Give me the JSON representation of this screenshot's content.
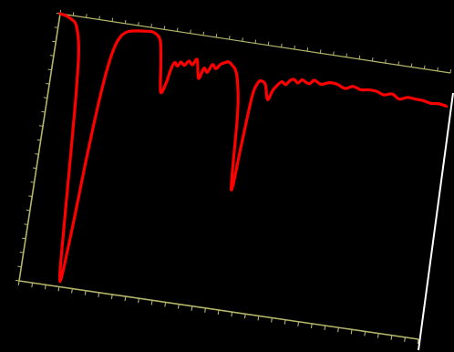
{
  "chart_data": {
    "type": "line",
    "title": "",
    "xlabel": "",
    "ylabel": "",
    "xlim": [
      0,
      100
    ],
    "ylim": [
      0,
      100
    ],
    "grid": false,
    "legend": "none",
    "x_ticks": [
      0,
      3.33,
      6.67,
      10,
      13.33,
      16.67,
      20,
      23.33,
      26.67,
      30,
      33.33,
      36.67,
      40,
      43.33,
      46.67,
      50,
      53.33,
      56.67,
      60,
      63.33,
      66.67,
      70,
      73.33,
      76.67,
      80,
      83.33,
      86.67,
      90,
      93.33,
      96.67,
      100
    ],
    "y_ticks": [
      0,
      5.26,
      10.53,
      15.79,
      21.05,
      26.32,
      31.58,
      36.84,
      42.11,
      47.37,
      52.63,
      57.89,
      63.16,
      68.42,
      73.68,
      78.95,
      84.21,
      89.47,
      94.74,
      100
    ],
    "colors": {
      "background": "#000000",
      "axis": "#b5b56a",
      "series": "#ff0000",
      "edge_highlight": "#ffffff"
    },
    "series": [
      {
        "x": [
          0,
          1.5,
          3,
          4.5,
          6,
          7,
          8,
          9,
          10,
          11,
          12,
          13,
          14,
          15,
          16,
          17,
          18,
          20,
          22,
          24,
          26,
          27,
          28,
          29,
          29.8,
          30.5,
          31.3,
          32,
          33,
          34,
          35,
          36,
          37,
          38,
          39,
          40,
          41,
          42,
          43,
          44,
          45,
          46,
          47,
          48,
          49,
          50,
          51,
          52,
          53,
          54,
          55,
          56,
          57,
          58,
          59,
          60,
          61,
          62,
          63,
          64,
          65,
          66,
          67,
          68,
          70,
          72,
          74,
          76,
          78,
          80,
          82,
          84,
          86,
          88,
          90,
          92,
          94,
          96,
          98,
          100
        ],
        "y": [
          100,
          99.6,
          98.6,
          96.5,
          88,
          72,
          48,
          22,
          2,
          20,
          48,
          70,
          84,
          91.5,
          95,
          96.6,
          97.4,
          98,
          98.3,
          98.4,
          96,
          88,
          77,
          80,
          86,
          88.5,
          87.3,
          89,
          88,
          89.8,
          88.6,
          90.8,
          84,
          88,
          86.7,
          89.8,
          88.5,
          90.3,
          91.2,
          91.7,
          90.6,
          89,
          84,
          73,
          45,
          62,
          80,
          85.6,
          86.5,
          85.2,
          80,
          83.7,
          85.9,
          87.4,
          86.5,
          88.3,
          88.9,
          87.8,
          89.2,
          88.5,
          88.2,
          89.7,
          89.1,
          88.6,
          89.7,
          89.5,
          88.4,
          89.6,
          88.8,
          89.2,
          89.1,
          88.2,
          89,
          87.5,
          88.6,
          88.4,
          88.3,
          87.7,
          88,
          87.5
        ]
      }
    ]
  }
}
